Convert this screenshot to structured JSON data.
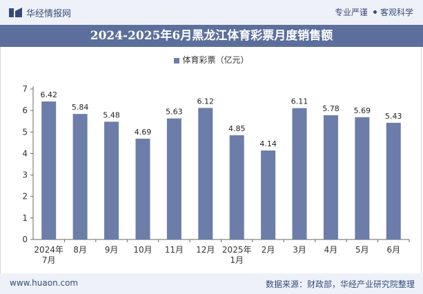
{
  "header": {
    "brand": "华经情报网",
    "tag1": "专业严谨",
    "tag2": "客观科学"
  },
  "title": "2024-2025年6月黑龙江体育彩票月度销售额",
  "footer": {
    "site": "www.huaon.com",
    "source": "数据来源：财政部，华经产业研究院整理"
  },
  "colors": {
    "bar": "#6b7da8",
    "title_bg": "#5c6f9c",
    "bar_text": "#354a7a"
  },
  "chart_data": {
    "type": "bar",
    "title": "2024-2025年6月黑龙江体育彩票月度销售额",
    "legend": "体育彩票（亿元）",
    "categories": [
      [
        "2024年",
        "7月"
      ],
      [
        "8月"
      ],
      [
        "9月"
      ],
      [
        "10月"
      ],
      [
        "11月"
      ],
      [
        "12月"
      ],
      [
        "2025年",
        "1月"
      ],
      [
        "2月"
      ],
      [
        "3月"
      ],
      [
        "4月"
      ],
      [
        "5月"
      ],
      [
        "6月"
      ]
    ],
    "values": [
      6.42,
      5.84,
      5.48,
      4.69,
      5.63,
      6.12,
      4.85,
      4.14,
      6.11,
      5.78,
      5.69,
      5.43
    ],
    "ylim": [
      0,
      7
    ],
    "yticks": [
      0,
      1,
      2,
      3,
      4,
      5,
      6,
      7
    ],
    "grid": false
  }
}
